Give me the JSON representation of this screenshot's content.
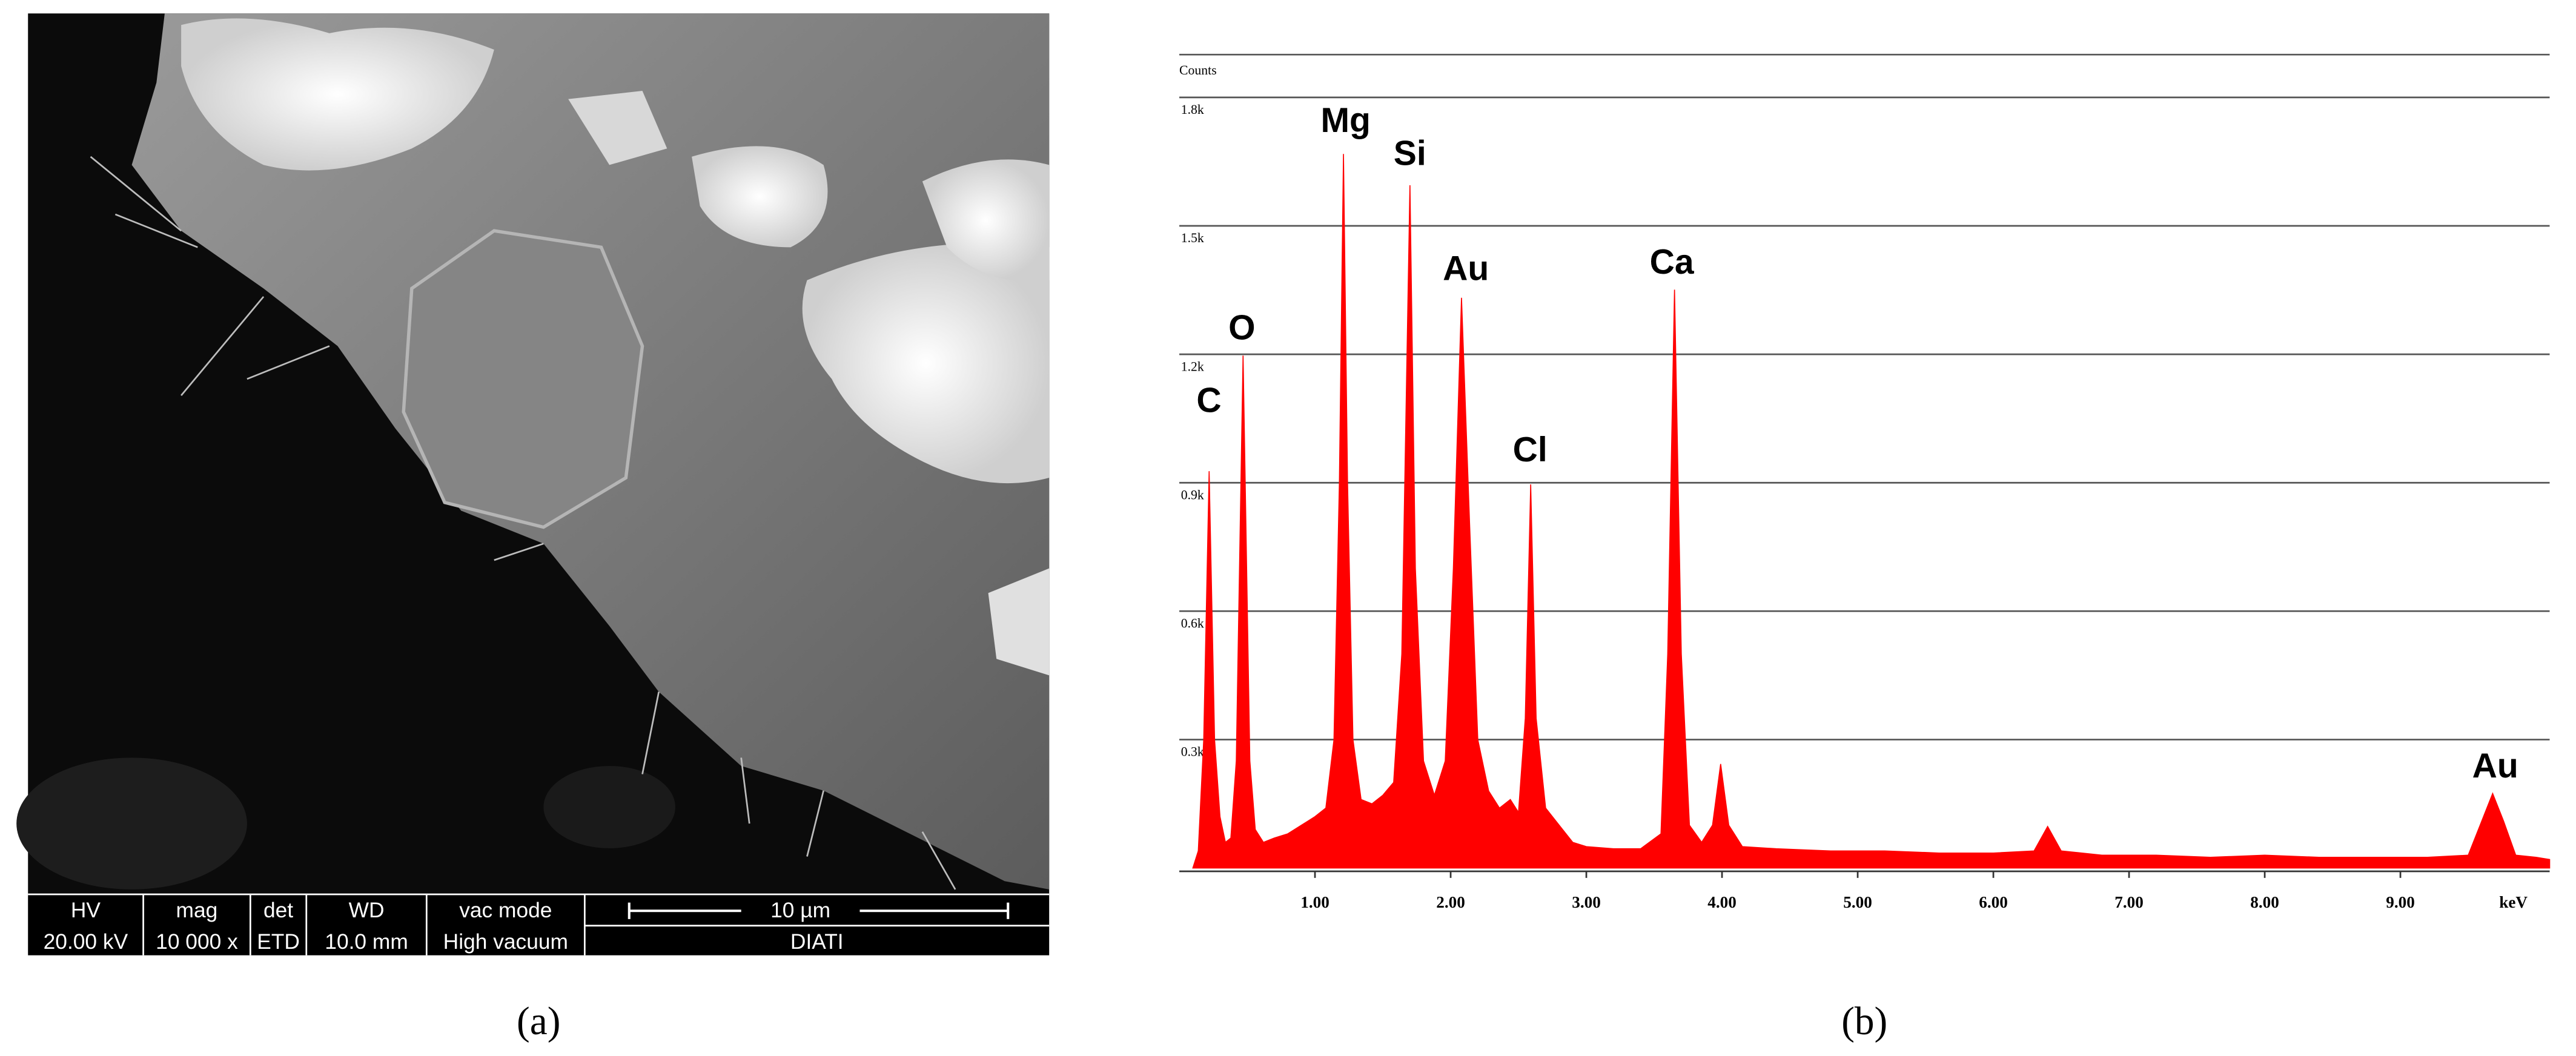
{
  "panel_a": {
    "info_bar": {
      "headers": [
        "HV",
        "mag",
        "det",
        "WD",
        "vac mode"
      ],
      "values": [
        "20.00 kV",
        "10 000 x",
        "ETD",
        "10.0 mm",
        "High vacuum"
      ]
    },
    "scale_bar": "10 µm",
    "footer": "DIATI",
    "caption": "(a)"
  },
  "panel_b": {
    "caption": "(b)"
  },
  "chart_data": {
    "type": "area",
    "ylabel": "Counts",
    "xlabel": "keV",
    "color": "#ff0000",
    "grid": true,
    "annotations": [
      "C",
      "O",
      "Mg",
      "Si",
      "Au",
      "Cl",
      "Ca",
      "Au"
    ],
    "xlim": [
      0,
      10.1
    ],
    "ylim": [
      0,
      1900
    ],
    "xticks": [
      {
        "value": 1,
        "label": "1.00"
      },
      {
        "value": 2,
        "label": "2.00"
      },
      {
        "value": 3,
        "label": "3.00"
      },
      {
        "value": 4,
        "label": "4.00"
      },
      {
        "value": 5,
        "label": "5.00"
      },
      {
        "value": 6,
        "label": "6.00"
      },
      {
        "value": 7,
        "label": "7.00"
      },
      {
        "value": 8,
        "label": "8.00"
      },
      {
        "value": 9,
        "label": "9.00"
      }
    ],
    "yticks": [
      {
        "value": 300,
        "label": "0.3k"
      },
      {
        "value": 600,
        "label": "0.6k"
      },
      {
        "value": 900,
        "label": "0.9k"
      },
      {
        "value": 1200,
        "label": "1.2k"
      },
      {
        "value": 1500,
        "label": "1.5k"
      },
      {
        "value": 1800,
        "label": "1.8k"
      }
    ],
    "x": [
      0.1,
      0.14,
      0.18,
      0.22,
      0.26,
      0.3,
      0.34,
      0.38,
      0.42,
      0.47,
      0.52,
      0.56,
      0.62,
      0.7,
      0.8,
      0.9,
      1.0,
      1.08,
      1.14,
      1.18,
      1.21,
      1.24,
      1.28,
      1.34,
      1.42,
      1.5,
      1.58,
      1.64,
      1.7,
      1.74,
      1.8,
      1.88,
      1.96,
      2.02,
      2.08,
      2.14,
      2.2,
      2.28,
      2.36,
      2.44,
      2.5,
      2.55,
      2.59,
      2.63,
      2.7,
      2.8,
      2.9,
      3.0,
      3.2,
      3.4,
      3.55,
      3.6,
      3.65,
      3.7,
      3.76,
      3.85,
      3.93,
      3.99,
      4.05,
      4.15,
      4.4,
      4.8,
      5.2,
      5.6,
      6.0,
      6.3,
      6.4,
      6.5,
      6.8,
      7.2,
      7.6,
      8.0,
      8.4,
      8.8,
      9.2,
      9.5,
      9.6,
      9.68,
      9.76,
      9.85,
      10.0,
      10.1
    ],
    "values": [
      0,
      40,
      300,
      927,
      300,
      120,
      60,
      70,
      250,
      1197,
      250,
      90,
      60,
      70,
      80,
      100,
      120,
      140,
      300,
      900,
      1668,
      900,
      300,
      160,
      150,
      170,
      200,
      500,
      1595,
      700,
      250,
      170,
      250,
      700,
      1332,
      800,
      300,
      180,
      140,
      160,
      130,
      350,
      896,
      350,
      140,
      100,
      60,
      50,
      45,
      45,
      80,
      500,
      1351,
      500,
      100,
      60,
      100,
      243,
      100,
      50,
      45,
      40,
      40,
      35,
      35,
      40,
      97,
      40,
      30,
      30,
      25,
      30,
      25,
      25,
      25,
      30,
      110,
      174,
      110,
      30,
      25,
      20
    ]
  }
}
